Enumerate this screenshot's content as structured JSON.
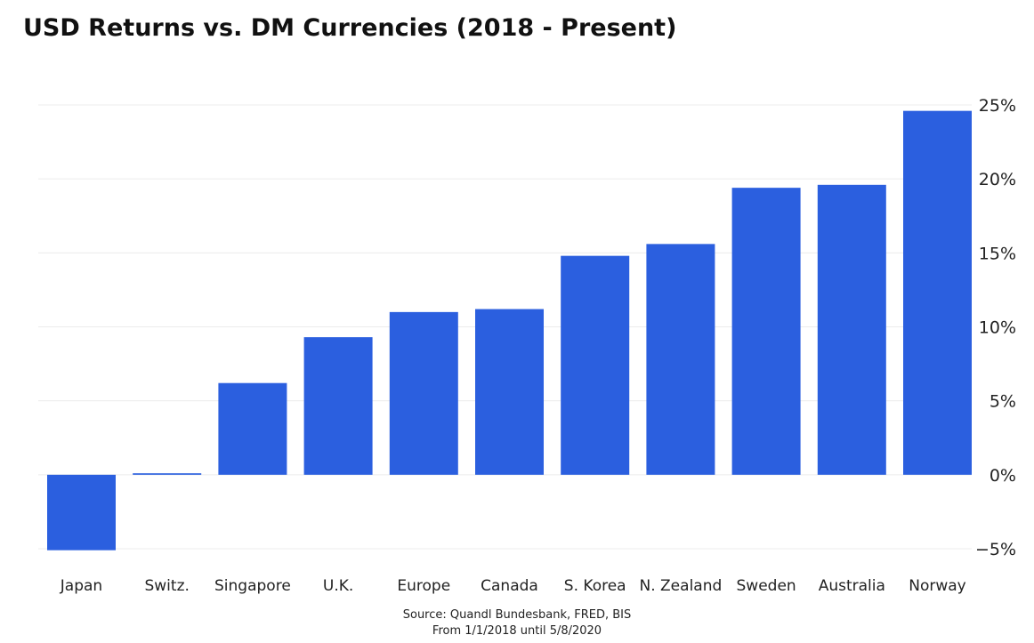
{
  "title": "USD Returns vs. DM Currencies (2018 - Present)",
  "source_line1": "Source: Quandl Bundesbank, FRED, BIS",
  "source_line2": "From 1/1/2018 until 5/8/2020",
  "colors": {
    "bar": "#2b5fdf",
    "grid": "#ececec",
    "text": "#222222"
  },
  "chart_data": {
    "type": "bar",
    "categories": [
      "Japan",
      "Switz.",
      "Singapore",
      "U.K.",
      "Europe",
      "Canada",
      "S. Korea",
      "N. Zealand",
      "Sweden",
      "Australia",
      "Norway"
    ],
    "values": [
      -5.1,
      0.1,
      6.2,
      9.3,
      11.0,
      11.2,
      14.8,
      15.6,
      19.4,
      19.6,
      24.6
    ],
    "unit": "%",
    "ylim": [
      -5,
      25
    ],
    "yticks": [
      25,
      20,
      15,
      10,
      5,
      0,
      -5
    ],
    "ytick_labels": [
      "25%",
      "20%",
      "15%",
      "10%",
      "5%",
      "0%",
      "−5%"
    ],
    "y_axis_side": "right",
    "grid": true
  }
}
